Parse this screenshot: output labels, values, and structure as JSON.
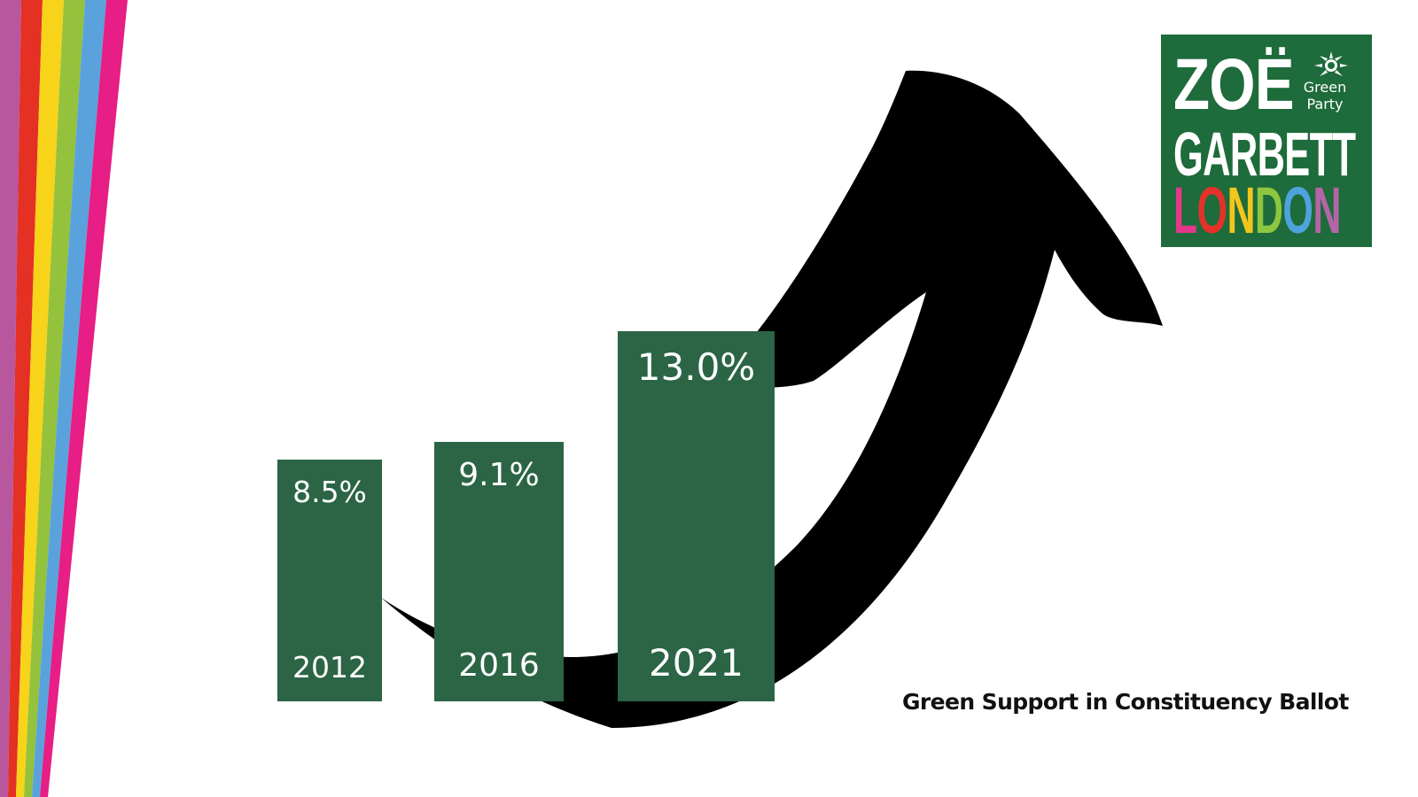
{
  "decoration": {
    "stripe_colors": [
      "#b8569e",
      "#e53024",
      "#f7d31a",
      "#94c23c",
      "#5aa2dc",
      "#e61e85"
    ]
  },
  "logo": {
    "name_line1": "ZOË",
    "name_line2": "GARBETT",
    "city_letters": [
      {
        "char": "L",
        "color": "#e3398b"
      },
      {
        "char": "O",
        "color": "#e4322b"
      },
      {
        "char": "N",
        "color": "#f2c61b"
      },
      {
        "char": "D",
        "color": "#8dc63f"
      },
      {
        "char": "O",
        "color": "#4ea3dc"
      },
      {
        "char": "N",
        "color": "#b565a7"
      }
    ],
    "party_line1": "Green",
    "party_line2": "Party",
    "background": "#1e6b3b"
  },
  "chart_data": {
    "type": "bar",
    "categories": [
      "2012",
      "2016",
      "2021"
    ],
    "values": [
      8.5,
      9.1,
      13.0
    ],
    "value_labels": [
      "8.5%",
      "9.1%",
      "13.0%"
    ],
    "bar_color": "#2b6545",
    "title": "Green Support in Constituency Ballot",
    "arrow": "rising"
  }
}
